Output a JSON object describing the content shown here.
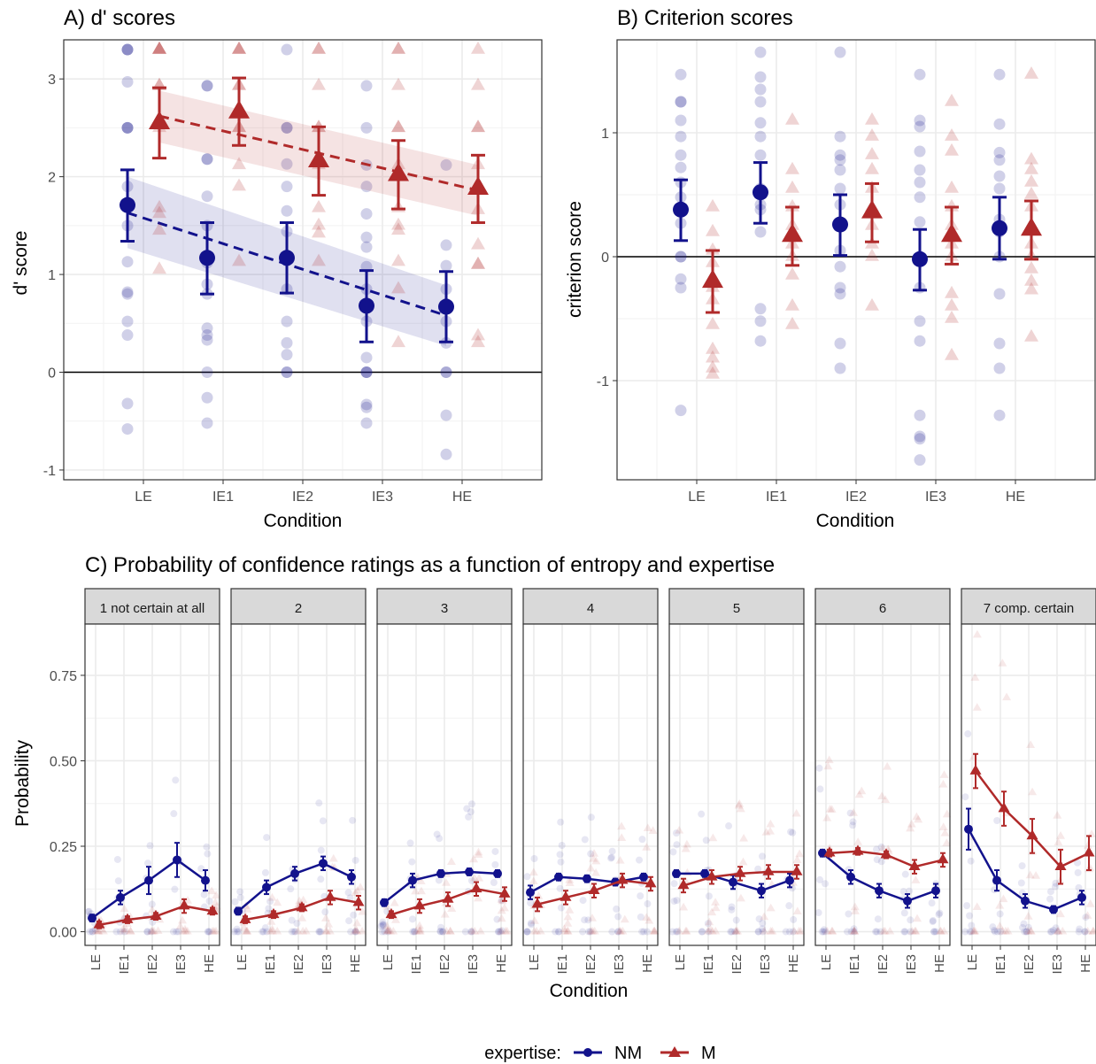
{
  "colors": {
    "nm": "#12128c",
    "m": "#b02a2a",
    "panel_border": "#333333",
    "grid": "#ebebeb",
    "strip_bg": "#d9d9d9"
  },
  "legend": {
    "title": "expertise:",
    "items": [
      {
        "label": "NM",
        "color": "#12128c",
        "shape": "circle"
      },
      {
        "label": "M",
        "color": "#b02a2a",
        "shape": "triangle"
      }
    ]
  },
  "chart_data": [
    {
      "id": "A",
      "type": "scatter",
      "title": "A) d' scores",
      "xlabel": "Condition",
      "ylabel": "d' score",
      "categories": [
        "LE",
        "IE1",
        "IE2",
        "IE3",
        "HE"
      ],
      "ylim": [
        -1.1,
        3.4
      ],
      "yticks": [
        -1,
        0,
        1,
        2,
        3
      ],
      "hline": 0,
      "series": [
        {
          "name": "NM",
          "shape": "circle",
          "offset": -0.2,
          "mean": [
            1.71,
            1.17,
            1.17,
            0.68,
            0.67
          ],
          "lower": [
            1.34,
            0.8,
            0.81,
            0.31,
            0.31
          ],
          "upper": [
            2.07,
            1.53,
            1.53,
            1.04,
            1.03
          ],
          "trend": [
            1.63,
            0.58
          ],
          "band": [
            [
              1.27,
              2.0
            ],
            [
              0.27,
              0.89
            ]
          ],
          "points": [
            [
              3.3,
              3.3,
              3.3,
              2.97,
              2.5,
              2.5,
              2.5,
              1.9,
              1.72,
              1.5,
              1.13,
              0.82,
              0.8,
              0.52,
              0.38,
              -0.32,
              -0.58
            ],
            [
              2.93,
              2.93,
              2.18,
              2.18,
              1.8,
              1.5,
              1.12,
              0.9,
              0.8,
              0.45,
              0.38,
              0.33,
              0.0,
              -0.26,
              -0.52
            ],
            [
              3.3,
              2.5,
              2.5,
              2.13,
              1.9,
              1.65,
              1.44,
              1.14,
              0.85,
              0.52,
              0.3,
              0.18,
              0.0,
              0.0
            ],
            [
              2.93,
              2.5,
              2.12,
              1.9,
              1.62,
              1.38,
              1.28,
              1.08,
              0.85,
              0.52,
              0.15,
              0.0,
              0.0,
              0.0,
              -0.33,
              -0.36,
              -0.52
            ],
            [
              2.12,
              1.3,
              1.09,
              0.85,
              0.7,
              0.52,
              0.3,
              0.0,
              0.0,
              -0.44,
              -0.84
            ]
          ]
        },
        {
          "name": "M",
          "shape": "triangle",
          "offset": 0.2,
          "mean": [
            2.55,
            2.66,
            2.16,
            2.02,
            1.88
          ],
          "lower": [
            2.19,
            2.32,
            1.81,
            1.67,
            1.53
          ],
          "upper": [
            2.91,
            3.01,
            2.51,
            2.37,
            2.22
          ],
          "trend": [
            2.62,
            1.86
          ],
          "band": [
            [
              2.35,
              2.88
            ],
            [
              1.6,
              2.12
            ]
          ],
          "points": [
            [
              3.3,
              3.3,
              3.3,
              3.3,
              2.93,
              2.93,
              2.5,
              1.68,
              1.62,
              1.45,
              1.05
            ],
            [
              3.3,
              3.3,
              3.3,
              2.93,
              2.93,
              2.5,
              2.5,
              2.12,
              1.9,
              1.13
            ],
            [
              3.3,
              3.3,
              2.93,
              2.5,
              2.5,
              2.12,
              1.68,
              1.5,
              1.42,
              1.13
            ],
            [
              3.3,
              3.3,
              2.93,
              2.5,
              2.5,
              2.12,
              1.68,
              1.5,
              1.45,
              1.13,
              0.85,
              0.3
            ],
            [
              3.3,
              2.93,
              2.5,
              2.5,
              2.12,
              1.66,
              1.3,
              1.1,
              1.1,
              0.37,
              0.3
            ]
          ]
        }
      ]
    },
    {
      "id": "B",
      "type": "scatter",
      "title": "B) Criterion scores",
      "xlabel": "Condition",
      "ylabel": "criterion score",
      "categories": [
        "LE",
        "IE1",
        "IE2",
        "IE3",
        "HE"
      ],
      "ylim": [
        -1.8,
        1.75
      ],
      "yticks": [
        -1,
        0,
        1
      ],
      "hline": 0,
      "series": [
        {
          "name": "NM",
          "shape": "circle",
          "offset": -0.2,
          "mean": [
            0.38,
            0.52,
            0.26,
            -0.02,
            0.23
          ],
          "lower": [
            0.13,
            0.27,
            0.01,
            -0.27,
            -0.02
          ],
          "upper": [
            0.62,
            0.76,
            0.5,
            0.22,
            0.48
          ],
          "points": [
            [
              1.47,
              1.25,
              1.25,
              1.1,
              0.97,
              0.82,
              0.72,
              0.6,
              0.48,
              0.27,
              0.0,
              0.0,
              -0.18,
              -0.25,
              -1.24
            ],
            [
              1.65,
              1.45,
              1.35,
              1.25,
              1.08,
              0.97,
              0.82,
              0.55,
              0.42,
              0.38,
              0.2,
              -0.42,
              -0.52,
              -0.68
            ],
            [
              1.65,
              0.97,
              0.82,
              0.78,
              0.7,
              0.55,
              0.42,
              0.28,
              0.05,
              -0.08,
              -0.25,
              -0.3,
              -0.7,
              -0.9
            ],
            [
              1.47,
              1.1,
              1.05,
              0.85,
              0.7,
              0.6,
              0.48,
              0.28,
              0.0,
              -0.25,
              -0.52,
              -0.68,
              -1.28,
              -1.45,
              -1.47,
              -1.64
            ],
            [
              1.47,
              1.07,
              0.84,
              0.78,
              0.65,
              0.55,
              0.3,
              0.2,
              0.0,
              -0.3,
              -0.7,
              -0.9,
              -1.28
            ]
          ]
        },
        {
          "name": "M",
          "shape": "triangle",
          "offset": 0.2,
          "mean": [
            -0.2,
            0.17,
            0.36,
            0.17,
            0.22
          ],
          "lower": [
            -0.45,
            -0.07,
            0.12,
            -0.06,
            -0.02
          ],
          "upper": [
            0.05,
            0.4,
            0.59,
            0.4,
            0.45
          ],
          "points": [
            [
              0.4,
              0.2,
              0.05,
              -0.05,
              -0.25,
              -0.35,
              -0.55,
              -0.75,
              -0.82,
              -0.9,
              -0.95
            ],
            [
              1.1,
              0.7,
              0.55,
              0.4,
              0.25,
              0.1,
              0.0,
              -0.15,
              -0.4,
              -0.55
            ],
            [
              1.1,
              0.97,
              0.82,
              0.7,
              0.55,
              0.4,
              0.25,
              0.1,
              0.0,
              -0.4
            ],
            [
              1.25,
              0.97,
              0.85,
              0.55,
              0.4,
              0.25,
              0.1,
              0.0,
              -0.3,
              -0.4,
              -0.5,
              -0.8
            ],
            [
              1.47,
              0.78,
              0.7,
              0.6,
              0.5,
              0.4,
              0.25,
              0.1,
              0.0,
              -0.1,
              -0.2,
              -0.27,
              -0.65
            ]
          ]
        }
      ]
    },
    {
      "id": "C",
      "type": "line",
      "title": "C) Probability of confidence ratings as a function of entropy and expertise",
      "xlabel": "Condition",
      "ylabel": "Probability",
      "categories": [
        "LE",
        "IE1",
        "IE2",
        "IE3",
        "HE"
      ],
      "ylim": [
        -0.04,
        0.9
      ],
      "yticks": [
        0.0,
        0.25,
        0.5,
        0.75
      ],
      "ytick_labels": [
        "0.00",
        "0.25",
        "0.50",
        "0.75"
      ],
      "facets": [
        {
          "label": "1 not certain at all",
          "nm": [
            0.04,
            0.1,
            0.15,
            0.21,
            0.15
          ],
          "nm_err": [
            0.01,
            0.02,
            0.04,
            0.05,
            0.03
          ],
          "m": [
            0.02,
            0.035,
            0.045,
            0.075,
            0.06
          ],
          "m_err": [
            0.01,
            0.01,
            0.01,
            0.02,
            0.01
          ]
        },
        {
          "label": "2",
          "nm": [
            0.06,
            0.13,
            0.17,
            0.2,
            0.16
          ],
          "nm_err": [
            0.01,
            0.02,
            0.02,
            0.02,
            0.02
          ],
          "m": [
            0.035,
            0.05,
            0.07,
            0.1,
            0.085
          ],
          "m_err": [
            0.01,
            0.01,
            0.01,
            0.02,
            0.02
          ]
        },
        {
          "label": "3",
          "nm": [
            0.085,
            0.15,
            0.17,
            0.175,
            0.17
          ],
          "nm_err": [
            0.01,
            0.02,
            0.01,
            0.01,
            0.01
          ],
          "m": [
            0.05,
            0.075,
            0.095,
            0.125,
            0.11
          ],
          "m_err": [
            0.01,
            0.02,
            0.02,
            0.02,
            0.02
          ]
        },
        {
          "label": "4",
          "nm": [
            0.115,
            0.16,
            0.155,
            0.145,
            0.16
          ],
          "nm_err": [
            0.02,
            0.01,
            0.01,
            0.01,
            0.01
          ],
          "m": [
            0.08,
            0.1,
            0.12,
            0.15,
            0.14
          ],
          "m_err": [
            0.02,
            0.02,
            0.02,
            0.02,
            0.02
          ]
        },
        {
          "label": "5",
          "nm": [
            0.17,
            0.17,
            0.145,
            0.12,
            0.15
          ],
          "nm_err": [
            0.01,
            0.01,
            0.02,
            0.02,
            0.02
          ],
          "m": [
            0.135,
            0.16,
            0.17,
            0.175,
            0.175
          ],
          "m_err": [
            0.02,
            0.02,
            0.02,
            0.02,
            0.02
          ]
        },
        {
          "label": "6",
          "nm": [
            0.23,
            0.16,
            0.12,
            0.09,
            0.12
          ],
          "nm_err": [
            0.01,
            0.02,
            0.02,
            0.02,
            0.02
          ],
          "m": [
            0.23,
            0.235,
            0.225,
            0.19,
            0.21
          ],
          "m_err": [
            0.01,
            0.01,
            0.01,
            0.02,
            0.02
          ]
        },
        {
          "label": "7 comp. certain",
          "nm": [
            0.3,
            0.15,
            0.09,
            0.065,
            0.1
          ],
          "nm_err": [
            0.06,
            0.03,
            0.02,
            0.01,
            0.02
          ],
          "m": [
            0.47,
            0.36,
            0.28,
            0.19,
            0.23
          ],
          "m_err": [
            0.05,
            0.05,
            0.05,
            0.05,
            0.05
          ]
        }
      ]
    }
  ]
}
